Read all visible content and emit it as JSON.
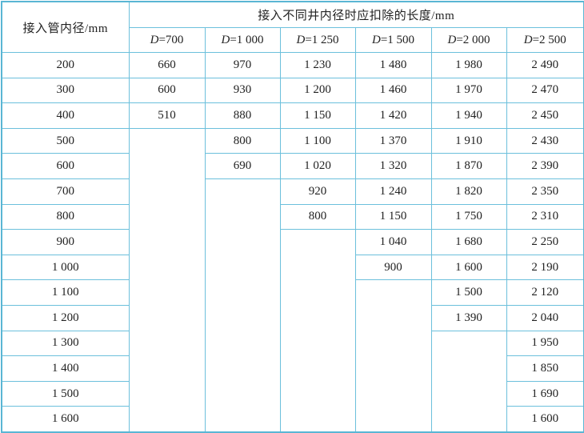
{
  "table": {
    "row_header": "接入管内径/mm",
    "group_header": "接入不同井内径时应扣除的长度/mm",
    "columns": [
      {
        "var": "D",
        "eq": "=700"
      },
      {
        "var": "D",
        "eq": "=1 000"
      },
      {
        "var": "D",
        "eq": "=1 250"
      },
      {
        "var": "D",
        "eq": "=1 500"
      },
      {
        "var": "D",
        "eq": "=2 000"
      },
      {
        "var": "D",
        "eq": "=2 500"
      }
    ],
    "rows": [
      {
        "pipe": "200",
        "values": [
          "660",
          "970",
          "1 230",
          "1 480",
          "1 980",
          "2 490"
        ]
      },
      {
        "pipe": "300",
        "values": [
          "600",
          "930",
          "1 200",
          "1 460",
          "1 970",
          "2 470"
        ]
      },
      {
        "pipe": "400",
        "values": [
          "510",
          "880",
          "1 150",
          "1 420",
          "1 940",
          "2 450"
        ]
      },
      {
        "pipe": "500",
        "values": [
          null,
          "800",
          "1 100",
          "1 370",
          "1 910",
          "2 430"
        ]
      },
      {
        "pipe": "600",
        "values": [
          null,
          "690",
          "1 020",
          "1 320",
          "1 870",
          "2 390"
        ]
      },
      {
        "pipe": "700",
        "values": [
          null,
          null,
          "920",
          "1 240",
          "1 820",
          "2 350"
        ]
      },
      {
        "pipe": "800",
        "values": [
          null,
          null,
          "800",
          "1 150",
          "1 750",
          "2 310"
        ]
      },
      {
        "pipe": "900",
        "values": [
          null,
          null,
          null,
          "1 040",
          "1 680",
          "2 250"
        ]
      },
      {
        "pipe": "1 000",
        "values": [
          null,
          null,
          null,
          "900",
          "1 600",
          "2 190"
        ]
      },
      {
        "pipe": "1 100",
        "values": [
          null,
          null,
          null,
          null,
          "1 500",
          "2 120"
        ]
      },
      {
        "pipe": "1 200",
        "values": [
          null,
          null,
          null,
          null,
          "1 390",
          "2 040"
        ]
      },
      {
        "pipe": "1 300",
        "values": [
          null,
          null,
          null,
          null,
          null,
          "1 950"
        ]
      },
      {
        "pipe": "1 400",
        "values": [
          null,
          null,
          null,
          null,
          null,
          "1 850"
        ]
      },
      {
        "pipe": "1 500",
        "values": [
          null,
          null,
          null,
          null,
          null,
          "1 690"
        ]
      },
      {
        "pipe": "1 600",
        "values": [
          null,
          null,
          null,
          null,
          null,
          "1 600"
        ]
      }
    ],
    "border_color": "#5ab6d4"
  }
}
